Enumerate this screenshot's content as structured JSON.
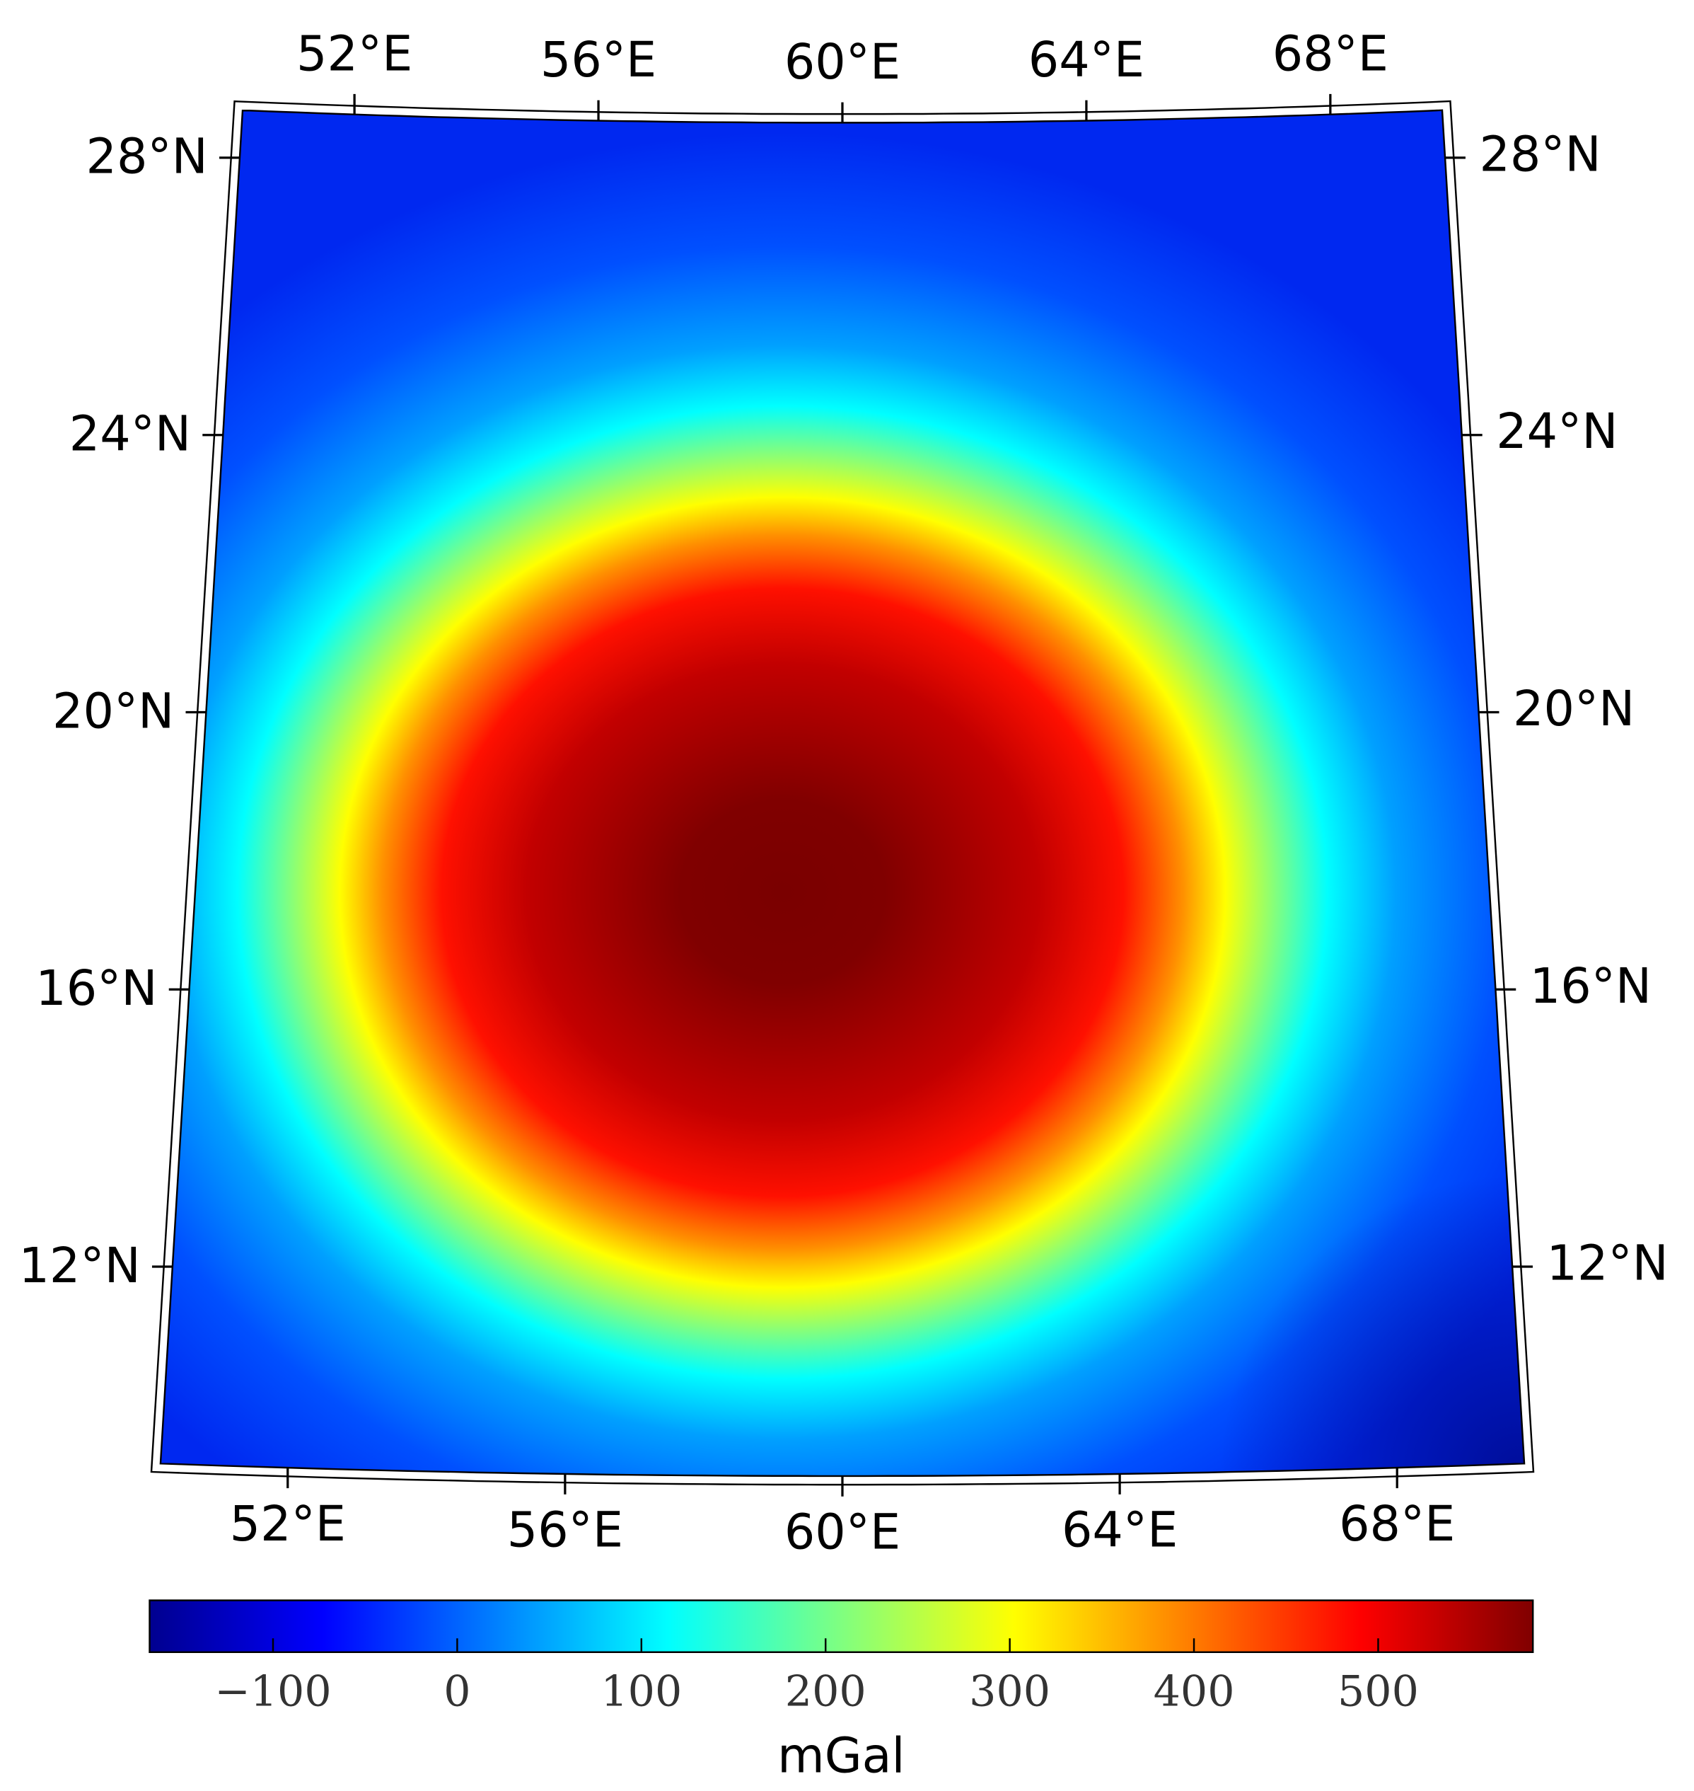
{
  "chart_data": {
    "type": "map",
    "xlim": [
      50.1,
      69.9
    ],
    "ylim": [
      9.1,
      28.75
    ],
    "xticks": [
      {
        "value": 52,
        "label": "52°E"
      },
      {
        "value": 56,
        "label": "56°E"
      },
      {
        "value": 60,
        "label": "60°E"
      },
      {
        "value": 64,
        "label": "64°E"
      },
      {
        "value": 68,
        "label": "68°E"
      }
    ],
    "yticks": [
      {
        "value": 12,
        "label": "12°N"
      },
      {
        "value": 16,
        "label": "16°N"
      },
      {
        "value": 20,
        "label": "20°N"
      },
      {
        "value": 24,
        "label": "24°N"
      },
      {
        "value": 28,
        "label": "28°N"
      }
    ],
    "colorbar": {
      "label": "mGal",
      "clim": [
        -167,
        584
      ],
      "ticks": [
        {
          "value": -100,
          "label": "−100"
        },
        0,
        100,
        200,
        300,
        400,
        500
      ]
    }
  }
}
